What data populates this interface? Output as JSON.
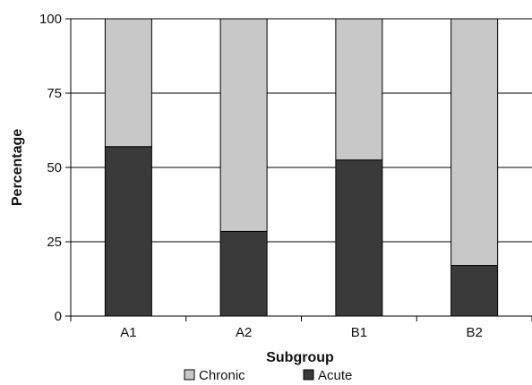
{
  "chart_data": {
    "type": "bar",
    "stacked": true,
    "categories": [
      "A1",
      "A2",
      "B1",
      "B2"
    ],
    "series": [
      {
        "name": "Acute",
        "values": [
          57,
          28.5,
          52.5,
          17
        ],
        "color": "#3a3a3a"
      },
      {
        "name": "Chronic",
        "values": [
          43,
          71.5,
          47.5,
          83
        ],
        "color": "#c8c8c8"
      }
    ],
    "xlabel": "Subgroup",
    "ylabel": "Percentage",
    "ylim": [
      0,
      100
    ],
    "yticks": [
      0,
      25,
      50,
      75,
      100
    ],
    "grid": "horizontal",
    "legend": {
      "position": "bottom",
      "entries": [
        {
          "label": "Chronic",
          "color": "#c8c8c8"
        },
        {
          "label": "Acute",
          "color": "#3a3a3a"
        }
      ]
    }
  }
}
